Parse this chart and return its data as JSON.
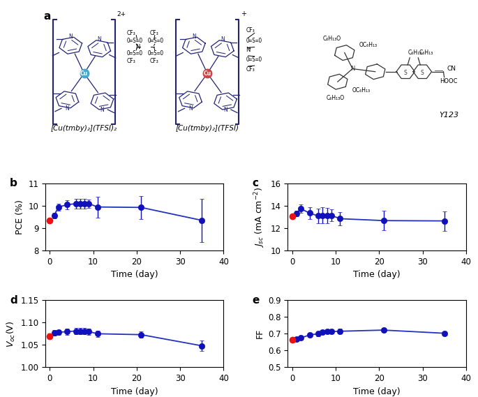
{
  "panel_b": {
    "label": "b",
    "xlabel": "Time (day)",
    "ylabel": "PCE (%)",
    "ylim": [
      8,
      11
    ],
    "xlim": [
      -1,
      38
    ],
    "yticks": [
      8,
      9,
      10,
      11
    ],
    "xticks": [
      0,
      10,
      20,
      30,
      40
    ],
    "red_x": [
      0
    ],
    "red_y": [
      9.35
    ],
    "red_yerr": [
      0.09
    ],
    "blue_x": [
      1,
      2,
      4,
      6,
      7,
      8,
      9,
      11,
      21,
      35
    ],
    "blue_y": [
      9.57,
      9.95,
      10.05,
      10.1,
      10.1,
      10.1,
      10.1,
      9.95,
      9.93,
      9.35
    ],
    "blue_yerr": [
      0.12,
      0.16,
      0.19,
      0.21,
      0.21,
      0.21,
      0.19,
      0.47,
      0.52,
      0.97
    ]
  },
  "panel_c": {
    "label": "c",
    "xlabel": "Time (day)",
    "ylabel": "$J_{sc}$ (mA cm$^{-2}$)",
    "ylim": [
      10,
      16
    ],
    "xlim": [
      -1,
      38
    ],
    "yticks": [
      10,
      12,
      14,
      16
    ],
    "xticks": [
      0,
      10,
      20,
      30,
      40
    ],
    "red_x": [
      0
    ],
    "red_y": [
      13.05
    ],
    "red_yerr": [
      0.08
    ],
    "blue_x": [
      1,
      2,
      4,
      6,
      7,
      8,
      9,
      11,
      21,
      35
    ],
    "blue_y": [
      13.3,
      13.75,
      13.35,
      13.1,
      13.15,
      13.15,
      13.15,
      12.85,
      12.68,
      12.65
    ],
    "blue_yerr": [
      0.25,
      0.38,
      0.52,
      0.68,
      0.72,
      0.68,
      0.52,
      0.62,
      0.88,
      0.88
    ]
  },
  "panel_d": {
    "label": "d",
    "xlabel": "Time (day)",
    "ylabel": "$V_{oc}$(V)",
    "ylim": [
      1.0,
      1.15
    ],
    "xlim": [
      -1,
      38
    ],
    "yticks": [
      1.0,
      1.05,
      1.1,
      1.15
    ],
    "xticks": [
      0,
      10,
      20,
      30,
      40
    ],
    "red_x": [
      0
    ],
    "red_y": [
      1.07
    ],
    "red_yerr": [
      0.005
    ],
    "blue_x": [
      1,
      2,
      4,
      6,
      7,
      8,
      9,
      11,
      21,
      35
    ],
    "blue_y": [
      1.077,
      1.078,
      1.08,
      1.081,
      1.081,
      1.081,
      1.08,
      1.075,
      1.073,
      1.048
    ],
    "blue_yerr": [
      0.006,
      0.006,
      0.007,
      0.007,
      0.007,
      0.007,
      0.007,
      0.007,
      0.007,
      0.012
    ]
  },
  "panel_e": {
    "label": "e",
    "xlabel": "Time (day)",
    "ylabel": "FF",
    "ylim": [
      0.5,
      0.9
    ],
    "xlim": [
      -1,
      38
    ],
    "yticks": [
      0.5,
      0.6,
      0.7,
      0.8,
      0.9
    ],
    "xticks": [
      0,
      10,
      20,
      30,
      40
    ],
    "red_x": [
      0
    ],
    "red_y": [
      0.665
    ],
    "red_yerr": [
      0.011
    ],
    "blue_x": [
      1,
      2,
      4,
      6,
      7,
      8,
      9,
      11,
      21,
      35
    ],
    "blue_y": [
      0.668,
      0.675,
      0.693,
      0.7,
      0.71,
      0.713,
      0.713,
      0.715,
      0.722,
      0.703
    ],
    "blue_yerr": [
      0.01,
      0.01,
      0.013,
      0.014,
      0.014,
      0.013,
      0.013,
      0.015,
      0.013,
      0.012
    ]
  },
  "blue_color": "#1111bb",
  "red_color": "#ee1111",
  "line_color": "#2233bb",
  "marker_size": 6,
  "capsize": 2.5,
  "elinewidth": 1.0,
  "linewidth": 1.3,
  "struct_color": "#222277",
  "cu1_color": "#44aacc",
  "cu2_color": "#cc4444"
}
